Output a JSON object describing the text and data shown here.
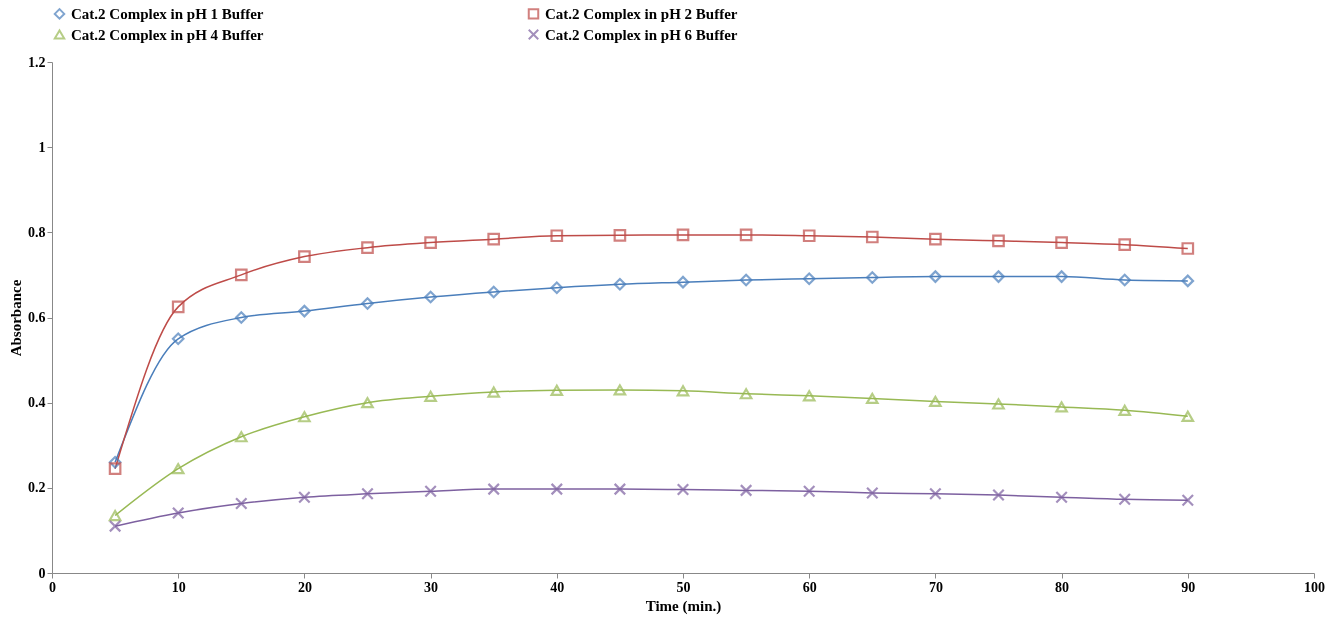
{
  "chart_data": {
    "type": "line",
    "xlabel": "Time (min.)",
    "ylabel": "Absorbance",
    "x": [
      5,
      10,
      15,
      20,
      25,
      30,
      35,
      40,
      45,
      50,
      55,
      60,
      65,
      70,
      75,
      80,
      85,
      90
    ],
    "series": [
      {
        "name": "Cat.2 Complex in pH 1 Buffer",
        "color": "#4a7ebb",
        "marker": "diamond",
        "values": [
          0.26,
          0.55,
          0.6,
          0.615,
          0.633,
          0.648,
          0.66,
          0.67,
          0.678,
          0.683,
          0.688,
          0.691,
          0.694,
          0.696,
          0.696,
          0.696,
          0.688,
          0.686
        ]
      },
      {
        "name": "Cat.2 Complex in pH 2 Buffer",
        "color": "#be4b48",
        "marker": "square",
        "values": [
          0.245,
          0.625,
          0.7,
          0.743,
          0.764,
          0.776,
          0.784,
          0.792,
          0.793,
          0.794,
          0.794,
          0.792,
          0.789,
          0.784,
          0.78,
          0.776,
          0.771,
          0.762
        ]
      },
      {
        "name": "Cat.2 Complex in pH 4 Buffer",
        "color": "#98b954",
        "marker": "triangle",
        "values": [
          0.135,
          0.245,
          0.32,
          0.367,
          0.4,
          0.415,
          0.425,
          0.429,
          0.43,
          0.428,
          0.421,
          0.416,
          0.41,
          0.403,
          0.397,
          0.39,
          0.382,
          0.368
        ]
      },
      {
        "name": "Cat.2 Complex in pH 6 Buffer",
        "color": "#7d60a0",
        "marker": "cross",
        "values": [
          0.11,
          0.141,
          0.163,
          0.178,
          0.186,
          0.192,
          0.197,
          0.197,
          0.197,
          0.196,
          0.194,
          0.192,
          0.188,
          0.186,
          0.183,
          0.178,
          0.173,
          0.171
        ]
      }
    ],
    "xlim": [
      0,
      100
    ],
    "xticks": [
      0,
      10,
      20,
      30,
      40,
      50,
      60,
      70,
      80,
      90,
      100
    ],
    "ylim": [
      0,
      1.2
    ],
    "yticks": [
      0,
      0.2,
      0.4,
      0.6,
      0.8,
      1,
      1.2
    ],
    "grid": false,
    "legend": "top"
  }
}
